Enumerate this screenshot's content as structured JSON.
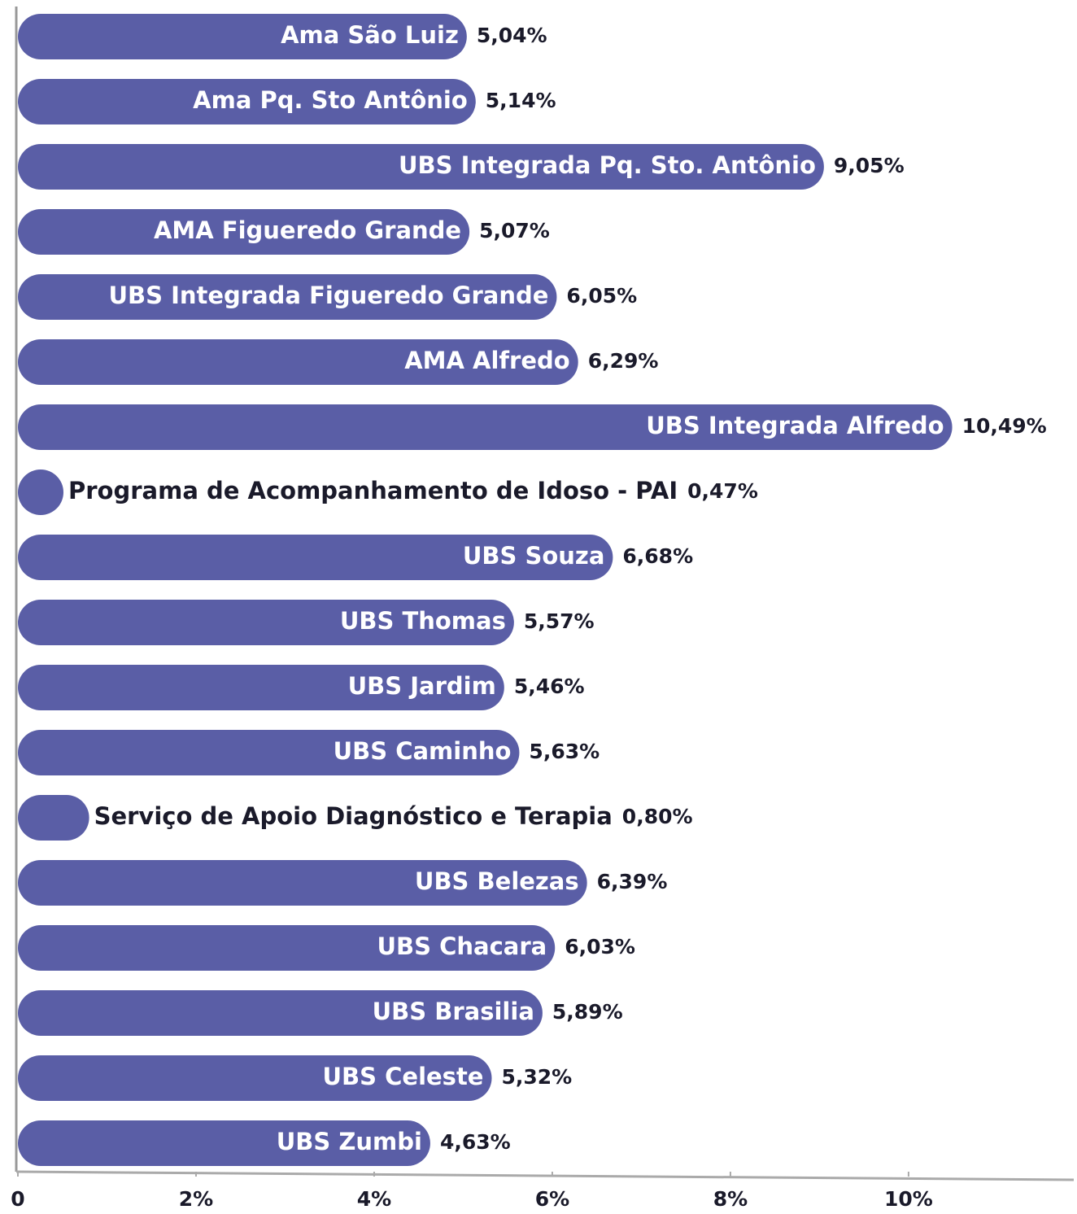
{
  "chart_data": {
    "type": "bar",
    "orientation": "horizontal",
    "color": "#5a5ea6",
    "categories": [
      "Ama São Luiz",
      "Ama Pq. Sto Antônio",
      "UBS Integrada  Pq. Sto. Antônio",
      "AMA Figueredo Grande",
      "UBS Integrada Figueredo Grande",
      "AMA Alfredo",
      "UBS Integrada Alfredo",
      "Programa de Acompanhamento de Idoso - PAI",
      "UBS Souza",
      "UBS Thomas",
      "UBS Jardim",
      "UBS Caminho",
      "Serviço de Apoio Diagnóstico e Terapia",
      "UBS Belezas",
      "UBS Chacara",
      "UBS Brasilia",
      "UBS Celeste",
      "UBS Zumbi"
    ],
    "values": [
      5.04,
      5.14,
      9.05,
      5.07,
      6.05,
      6.29,
      10.49,
      0.47,
      6.68,
      5.57,
      5.46,
      5.63,
      0.8,
      6.39,
      6.03,
      5.89,
      5.32,
      4.63
    ],
    "value_labels": [
      "5,04%",
      "5,14%",
      "9,05%",
      "5,07%",
      "6,05%",
      "6,29%",
      "10,49%",
      "0,47%",
      "6,68%",
      "5,57%",
      "5,46%",
      "5,63%",
      "0,80%",
      "6,39%",
      "6,03%",
      "5,89%",
      "5,32%",
      "4,63%"
    ],
    "xlim": [
      0,
      11.8
    ],
    "xticks": [
      0,
      {
        "value": 2,
        "label": "2%"
      },
      {
        "value": 4,
        "label": "4%"
      },
      {
        "value": 6,
        "label": "6%"
      },
      {
        "value": 8,
        "label": "8%"
      },
      {
        "value": 10,
        "label": "10%"
      }
    ]
  }
}
